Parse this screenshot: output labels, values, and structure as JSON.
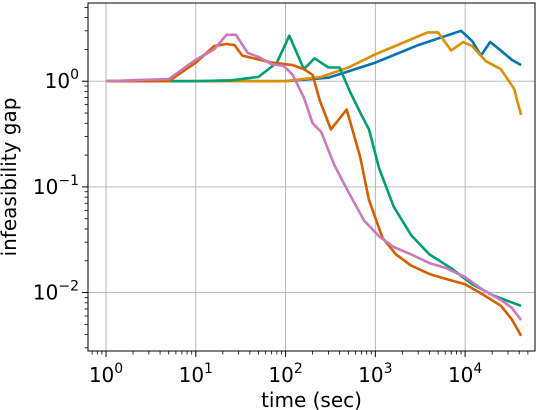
{
  "chart_data": {
    "type": "line",
    "xlabel": "time (sec)",
    "ylabel": "infeasibility gap",
    "x_scale": "log",
    "y_scale": "log",
    "xlim": [
      0.63,
      60000
    ],
    "ylim": [
      0.0028,
      5.5
    ],
    "grid": true,
    "x_ticks": [
      {
        "value": 1,
        "base": "10",
        "exp": "0"
      },
      {
        "value": 10,
        "base": "10",
        "exp": "1"
      },
      {
        "value": 100,
        "base": "10",
        "exp": "2"
      },
      {
        "value": 1000,
        "base": "10",
        "exp": "3"
      },
      {
        "value": 10000,
        "base": "10",
        "exp": "4"
      }
    ],
    "y_ticks": [
      {
        "value": 0.01,
        "base": "10",
        "exp": "−2"
      },
      {
        "value": 0.1,
        "base": "10",
        "exp": "−1"
      },
      {
        "value": 1,
        "base": "10",
        "exp": "0"
      }
    ],
    "series": [
      {
        "color": "#0173b2",
        "points": [
          [
            1,
            1.0
          ],
          [
            10,
            1.0
          ],
          [
            100,
            1.0
          ],
          [
            300,
            1.08
          ],
          [
            1000,
            1.5
          ],
          [
            3000,
            2.2
          ],
          [
            9000,
            3.0
          ],
          [
            12000,
            2.4
          ],
          [
            15000,
            1.75
          ],
          [
            19000,
            2.35
          ],
          [
            25000,
            1.95
          ],
          [
            33000,
            1.6
          ],
          [
            42000,
            1.42
          ]
        ]
      },
      {
        "color": "#de8f05",
        "points": [
          [
            1,
            1.0
          ],
          [
            10,
            1.0
          ],
          [
            100,
            1.0
          ],
          [
            250,
            1.1
          ],
          [
            500,
            1.35
          ],
          [
            1000,
            1.8
          ],
          [
            2000,
            2.3
          ],
          [
            3800,
            2.9
          ],
          [
            5000,
            2.9
          ],
          [
            7000,
            1.95
          ],
          [
            9500,
            2.35
          ],
          [
            12000,
            2.15
          ],
          [
            17000,
            1.55
          ],
          [
            25000,
            1.3
          ],
          [
            35000,
            0.85
          ],
          [
            42000,
            0.48
          ]
        ]
      },
      {
        "color": "#029e73",
        "points": [
          [
            1,
            1.0
          ],
          [
            10,
            1.0
          ],
          [
            25,
            1.02
          ],
          [
            50,
            1.1
          ],
          [
            80,
            1.5
          ],
          [
            110,
            2.7
          ],
          [
            160,
            1.3
          ],
          [
            210,
            1.65
          ],
          [
            300,
            1.35
          ],
          [
            400,
            1.35
          ],
          [
            520,
            0.8
          ],
          [
            700,
            0.48
          ],
          [
            850,
            0.35
          ],
          [
            1100,
            0.15
          ],
          [
            1600,
            0.065
          ],
          [
            2500,
            0.035
          ],
          [
            4000,
            0.023
          ],
          [
            7000,
            0.017
          ],
          [
            12000,
            0.012
          ],
          [
            20000,
            0.0095
          ],
          [
            30000,
            0.0083
          ],
          [
            42000,
            0.0075
          ]
        ]
      },
      {
        "color": "#d55e00",
        "points": [
          [
            1,
            1.0
          ],
          [
            5,
            1.0
          ],
          [
            10,
            1.5
          ],
          [
            16,
            2.15
          ],
          [
            22,
            2.25
          ],
          [
            27,
            2.2
          ],
          [
            33,
            1.75
          ],
          [
            70,
            1.5
          ],
          [
            120,
            1.42
          ],
          [
            160,
            1.3
          ],
          [
            200,
            1.15
          ],
          [
            240,
            0.66
          ],
          [
            320,
            0.35
          ],
          [
            480,
            0.54
          ],
          [
            680,
            0.19
          ],
          [
            850,
            0.075
          ],
          [
            1200,
            0.033
          ],
          [
            1700,
            0.023
          ],
          [
            2500,
            0.018
          ],
          [
            4000,
            0.015
          ],
          [
            6000,
            0.0135
          ],
          [
            10000,
            0.012
          ],
          [
            16000,
            0.0095
          ],
          [
            25000,
            0.0075
          ],
          [
            33000,
            0.0056
          ],
          [
            42000,
            0.0039
          ]
        ]
      },
      {
        "color": "#cc78bc",
        "points": [
          [
            1,
            1.0
          ],
          [
            5,
            1.05
          ],
          [
            10,
            1.6
          ],
          [
            16,
            2.0
          ],
          [
            22,
            2.75
          ],
          [
            28,
            2.75
          ],
          [
            38,
            1.85
          ],
          [
            50,
            1.7
          ],
          [
            70,
            1.45
          ],
          [
            95,
            1.4
          ],
          [
            120,
            1.15
          ],
          [
            160,
            0.7
          ],
          [
            200,
            0.4
          ],
          [
            250,
            0.33
          ],
          [
            350,
            0.16
          ],
          [
            500,
            0.09
          ],
          [
            750,
            0.048
          ],
          [
            1100,
            0.034
          ],
          [
            1600,
            0.027
          ],
          [
            2500,
            0.023
          ],
          [
            4000,
            0.019
          ],
          [
            6000,
            0.0172
          ],
          [
            10000,
            0.014
          ],
          [
            16000,
            0.0105
          ],
          [
            25000,
            0.0085
          ],
          [
            33000,
            0.0072
          ],
          [
            42000,
            0.0055
          ]
        ]
      }
    ]
  }
}
